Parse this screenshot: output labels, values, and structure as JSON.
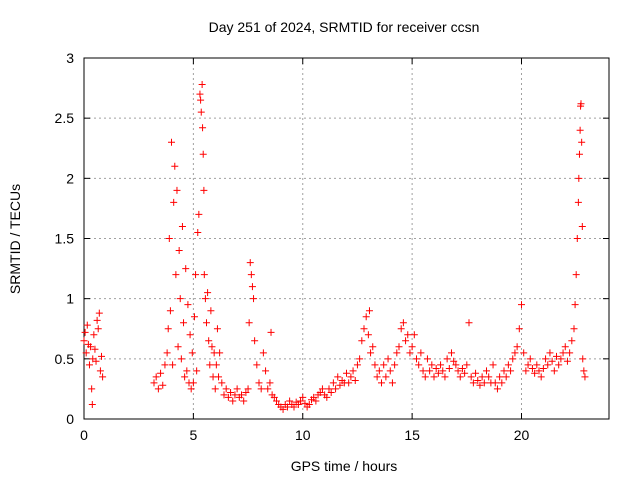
{
  "chart_data": {
    "type": "scatter",
    "title": "Day 251 of 2024, SRMTID for receiver ccsn",
    "xlabel": "GPS time / hours",
    "ylabel": "SRMTID / TECUs",
    "xlim": [
      0,
      24
    ],
    "ylim": [
      0,
      3
    ],
    "xticks": [
      0,
      5,
      10,
      15,
      20
    ],
    "xtick_labels": [
      "0",
      "5",
      "10",
      "15",
      "20"
    ],
    "yticks": [
      0,
      0.5,
      1,
      1.5,
      2,
      2.5,
      3
    ],
    "ytick_labels": [
      "0",
      "0.5",
      "1",
      "1.5",
      "2",
      "2.5",
      "3"
    ],
    "grid": true,
    "marker": "+",
    "series_color": "#ff0000",
    "series": [
      {
        "name": "SRMTID",
        "points": [
          [
            0.0,
            0.65
          ],
          [
            0.05,
            0.72
          ],
          [
            0.1,
            0.55
          ],
          [
            0.15,
            0.78
          ],
          [
            0.2,
            0.62
          ],
          [
            0.25,
            0.45
          ],
          [
            0.3,
            0.6
          ],
          [
            0.35,
            0.25
          ],
          [
            0.38,
            0.12
          ],
          [
            0.4,
            0.5
          ],
          [
            0.45,
            0.7
          ],
          [
            0.5,
            0.58
          ],
          [
            0.55,
            0.48
          ],
          [
            0.6,
            0.82
          ],
          [
            0.65,
            0.75
          ],
          [
            0.7,
            0.88
          ],
          [
            0.75,
            0.4
          ],
          [
            0.8,
            0.52
          ],
          [
            0.85,
            0.35
          ],
          [
            3.2,
            0.3
          ],
          [
            3.3,
            0.35
          ],
          [
            3.4,
            0.25
          ],
          [
            3.5,
            0.38
          ],
          [
            3.6,
            0.28
          ],
          [
            3.7,
            0.45
          ],
          [
            3.8,
            0.55
          ],
          [
            3.85,
            0.75
          ],
          [
            3.9,
            1.5
          ],
          [
            3.95,
            0.9
          ],
          [
            4.0,
            2.3
          ],
          [
            4.05,
            0.45
          ],
          [
            4.1,
            1.8
          ],
          [
            4.15,
            2.1
          ],
          [
            4.2,
            1.2
          ],
          [
            4.25,
            1.9
          ],
          [
            4.3,
            0.6
          ],
          [
            4.35,
            1.4
          ],
          [
            4.4,
            1.0
          ],
          [
            4.45,
            0.5
          ],
          [
            4.5,
            1.6
          ],
          [
            4.55,
            0.8
          ],
          [
            4.6,
            0.35
          ],
          [
            4.65,
            1.25
          ],
          [
            4.7,
            0.4
          ],
          [
            4.75,
            0.95
          ],
          [
            4.8,
            0.3
          ],
          [
            4.85,
            0.7
          ],
          [
            4.9,
            0.25
          ],
          [
            4.95,
            0.55
          ],
          [
            5.0,
            0.3
          ],
          [
            5.05,
            0.85
          ],
          [
            5.1,
            1.2
          ],
          [
            5.15,
            0.4
          ],
          [
            5.2,
            1.55
          ],
          [
            5.25,
            1.7
          ],
          [
            5.3,
            2.7
          ],
          [
            5.33,
            2.65
          ],
          [
            5.36,
            2.55
          ],
          [
            5.4,
            2.78
          ],
          [
            5.42,
            2.42
          ],
          [
            5.45,
            2.2
          ],
          [
            5.48,
            1.9
          ],
          [
            5.5,
            1.2
          ],
          [
            5.55,
            1.0
          ],
          [
            5.6,
            0.8
          ],
          [
            5.65,
            1.05
          ],
          [
            5.7,
            0.65
          ],
          [
            5.75,
            0.45
          ],
          [
            5.8,
            0.9
          ],
          [
            5.85,
            0.6
          ],
          [
            5.9,
            0.35
          ],
          [
            5.95,
            0.55
          ],
          [
            6.0,
            0.25
          ],
          [
            6.05,
            0.45
          ],
          [
            6.1,
            0.75
          ],
          [
            6.15,
            0.35
          ],
          [
            6.2,
            0.55
          ],
          [
            6.3,
            0.3
          ],
          [
            6.4,
            0.2
          ],
          [
            6.5,
            0.25
          ],
          [
            6.6,
            0.18
          ],
          [
            6.7,
            0.22
          ],
          [
            6.8,
            0.15
          ],
          [
            6.9,
            0.2
          ],
          [
            7.0,
            0.25
          ],
          [
            7.1,
            0.18
          ],
          [
            7.2,
            0.2
          ],
          [
            7.3,
            0.15
          ],
          [
            7.4,
            0.22
          ],
          [
            7.5,
            0.25
          ],
          [
            7.55,
            0.8
          ],
          [
            7.6,
            1.3
          ],
          [
            7.65,
            1.2
          ],
          [
            7.7,
            1.1
          ],
          [
            7.75,
            1.0
          ],
          [
            7.8,
            0.65
          ],
          [
            7.9,
            0.45
          ],
          [
            8.0,
            0.3
          ],
          [
            8.1,
            0.25
          ],
          [
            8.2,
            0.55
          ],
          [
            8.3,
            0.4
          ],
          [
            8.4,
            0.25
          ],
          [
            8.5,
            0.3
          ],
          [
            8.55,
            0.72
          ],
          [
            8.6,
            0.2
          ],
          [
            8.7,
            0.18
          ],
          [
            8.8,
            0.15
          ],
          [
            8.9,
            0.12
          ],
          [
            9.0,
            0.1
          ],
          [
            9.1,
            0.08
          ],
          [
            9.2,
            0.12
          ],
          [
            9.3,
            0.1
          ],
          [
            9.4,
            0.15
          ],
          [
            9.5,
            0.12
          ],
          [
            9.6,
            0.1
          ],
          [
            9.7,
            0.14
          ],
          [
            9.8,
            0.12
          ],
          [
            9.9,
            0.15
          ],
          [
            10.0,
            0.18
          ],
          [
            10.1,
            0.13
          ],
          [
            10.2,
            0.1
          ],
          [
            10.3,
            0.12
          ],
          [
            10.4,
            0.16
          ],
          [
            10.5,
            0.18
          ],
          [
            10.6,
            0.15
          ],
          [
            10.7,
            0.2
          ],
          [
            10.8,
            0.22
          ],
          [
            10.9,
            0.25
          ],
          [
            11.0,
            0.2
          ],
          [
            11.1,
            0.18
          ],
          [
            11.2,
            0.25
          ],
          [
            11.3,
            0.22
          ],
          [
            11.4,
            0.3
          ],
          [
            11.5,
            0.25
          ],
          [
            11.6,
            0.35
          ],
          [
            11.7,
            0.28
          ],
          [
            11.8,
            0.32
          ],
          [
            11.9,
            0.3
          ],
          [
            12.0,
            0.38
          ],
          [
            12.1,
            0.3
          ],
          [
            12.2,
            0.35
          ],
          [
            12.3,
            0.4
          ],
          [
            12.4,
            0.32
          ],
          [
            12.5,
            0.45
          ],
          [
            12.6,
            0.5
          ],
          [
            12.7,
            0.65
          ],
          [
            12.8,
            0.75
          ],
          [
            12.9,
            0.85
          ],
          [
            13.0,
            0.7
          ],
          [
            13.05,
            0.9
          ],
          [
            13.1,
            0.55
          ],
          [
            13.2,
            0.6
          ],
          [
            13.3,
            0.45
          ],
          [
            13.4,
            0.35
          ],
          [
            13.5,
            0.4
          ],
          [
            13.6,
            0.3
          ],
          [
            13.7,
            0.45
          ],
          [
            13.8,
            0.35
          ],
          [
            13.9,
            0.5
          ],
          [
            14.0,
            0.4
          ],
          [
            14.1,
            0.3
          ],
          [
            14.2,
            0.45
          ],
          [
            14.3,
            0.55
          ],
          [
            14.4,
            0.6
          ],
          [
            14.5,
            0.75
          ],
          [
            14.6,
            0.8
          ],
          [
            14.7,
            0.65
          ],
          [
            14.8,
            0.7
          ],
          [
            14.9,
            0.55
          ],
          [
            15.0,
            0.6
          ],
          [
            15.1,
            0.7
          ],
          [
            15.2,
            0.5
          ],
          [
            15.3,
            0.45
          ],
          [
            15.4,
            0.55
          ],
          [
            15.5,
            0.4
          ],
          [
            15.6,
            0.35
          ],
          [
            15.7,
            0.5
          ],
          [
            15.8,
            0.4
          ],
          [
            15.9,
            0.45
          ],
          [
            16.0,
            0.35
          ],
          [
            16.1,
            0.42
          ],
          [
            16.2,
            0.38
          ],
          [
            16.3,
            0.45
          ],
          [
            16.4,
            0.4
          ],
          [
            16.5,
            0.35
          ],
          [
            16.6,
            0.5
          ],
          [
            16.7,
            0.42
          ],
          [
            16.8,
            0.55
          ],
          [
            16.9,
            0.48
          ],
          [
            17.0,
            0.45
          ],
          [
            17.1,
            0.4
          ],
          [
            17.2,
            0.35
          ],
          [
            17.3,
            0.42
          ],
          [
            17.4,
            0.38
          ],
          [
            17.5,
            0.45
          ],
          [
            17.6,
            0.8
          ],
          [
            17.7,
            0.35
          ],
          [
            17.8,
            0.3
          ],
          [
            17.9,
            0.38
          ],
          [
            18.0,
            0.32
          ],
          [
            18.1,
            0.28
          ],
          [
            18.2,
            0.35
          ],
          [
            18.3,
            0.3
          ],
          [
            18.4,
            0.4
          ],
          [
            18.5,
            0.35
          ],
          [
            18.6,
            0.3
          ],
          [
            18.7,
            0.45
          ],
          [
            18.8,
            0.3
          ],
          [
            18.9,
            0.25
          ],
          [
            19.0,
            0.35
          ],
          [
            19.1,
            0.3
          ],
          [
            19.2,
            0.4
          ],
          [
            19.3,
            0.35
          ],
          [
            19.4,
            0.45
          ],
          [
            19.5,
            0.4
          ],
          [
            19.6,
            0.5
          ],
          [
            19.7,
            0.55
          ],
          [
            19.8,
            0.6
          ],
          [
            19.9,
            0.75
          ],
          [
            20.0,
            0.95
          ],
          [
            20.1,
            0.55
          ],
          [
            20.2,
            0.4
          ],
          [
            20.3,
            0.45
          ],
          [
            20.4,
            0.5
          ],
          [
            20.5,
            0.42
          ],
          [
            20.6,
            0.38
          ],
          [
            20.7,
            0.45
          ],
          [
            20.8,
            0.4
          ],
          [
            20.9,
            0.35
          ],
          [
            21.0,
            0.42
          ],
          [
            21.1,
            0.5
          ],
          [
            21.2,
            0.45
          ],
          [
            21.3,
            0.55
          ],
          [
            21.4,
            0.48
          ],
          [
            21.5,
            0.4
          ],
          [
            21.6,
            0.52
          ],
          [
            21.7,
            0.45
          ],
          [
            21.8,
            0.5
          ],
          [
            21.9,
            0.55
          ],
          [
            22.0,
            0.6
          ],
          [
            22.1,
            0.48
          ],
          [
            22.2,
            0.55
          ],
          [
            22.3,
            0.65
          ],
          [
            22.4,
            0.75
          ],
          [
            22.45,
            0.95
          ],
          [
            22.5,
            1.2
          ],
          [
            22.55,
            1.5
          ],
          [
            22.6,
            1.8
          ],
          [
            22.62,
            2.0
          ],
          [
            22.65,
            2.2
          ],
          [
            22.68,
            2.4
          ],
          [
            22.7,
            2.6
          ],
          [
            22.72,
            2.62
          ],
          [
            22.75,
            2.3
          ],
          [
            22.78,
            1.6
          ],
          [
            22.8,
            0.5
          ],
          [
            22.85,
            0.4
          ],
          [
            22.9,
            0.35
          ]
        ]
      }
    ]
  }
}
